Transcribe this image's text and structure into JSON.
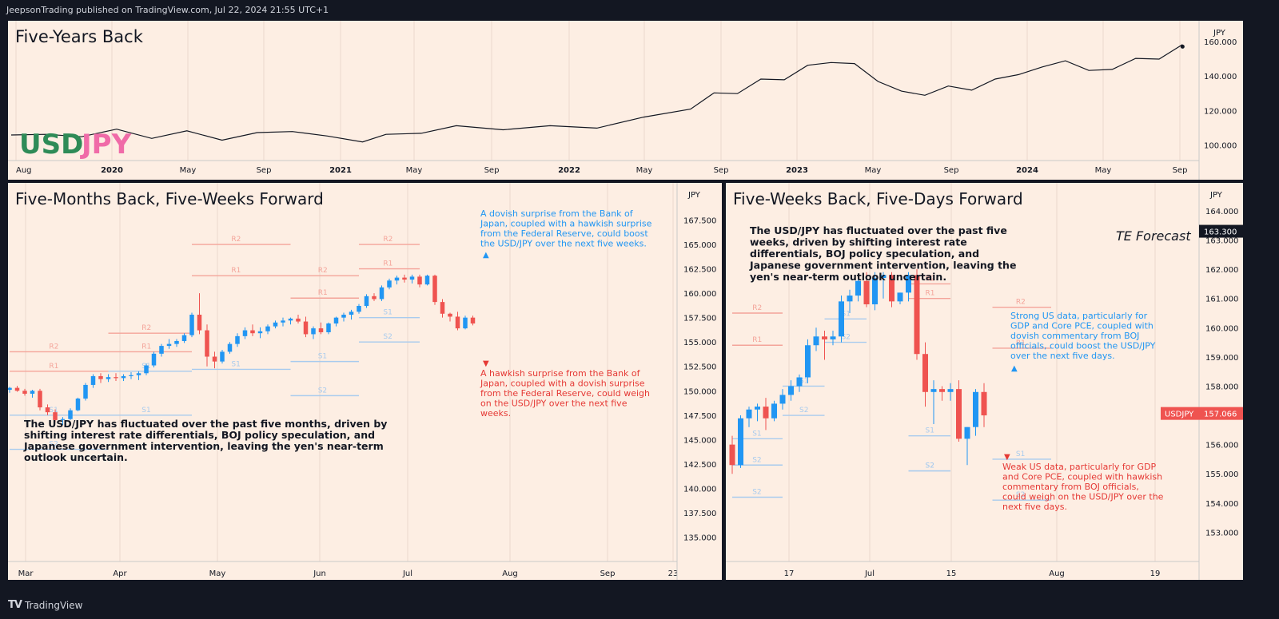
{
  "header": {
    "publisher": "JeepsonTrading published on TradingView.com, Jul 22, 2024 21:55 UTC+1"
  },
  "footer": {
    "brand": "TradingView"
  },
  "colors": {
    "bg": "#fdeee3",
    "up": "#2196f3",
    "down": "#ef5350",
    "res": "#f4a49a",
    "sup": "#a8cbee",
    "blueNote": "#2196f3",
    "redNote": "#e53935",
    "usd": "#2e8b57",
    "jpy": "#f06ba8"
  },
  "chart_data": [
    {
      "id": "five-years",
      "type": "line",
      "title": "Five-Years Back",
      "logo": {
        "usd": "USD",
        "jpy": "JPY"
      },
      "ylabel": "JPY",
      "ylim": [
        91,
        172
      ],
      "yticks": [
        "100.000",
        "120.000",
        "140.000",
        "160.000"
      ],
      "xticks": [
        "Aug",
        "2020",
        "May",
        "Sep",
        "2021",
        "May",
        "Sep",
        "2022",
        "May",
        "Sep",
        "2023",
        "May",
        "Sep",
        "2024",
        "May",
        "Sep"
      ],
      "series": [
        {
          "name": "USDJPY",
          "x": [
            0.0,
            0.15,
            0.3,
            0.45,
            0.6,
            0.75,
            0.9,
            1.05,
            1.2,
            1.35,
            1.5,
            1.6,
            1.75,
            1.9,
            2.1,
            2.3,
            2.5,
            2.7,
            2.9,
            3.0,
            3.1,
            3.2,
            3.3,
            3.4,
            3.5,
            3.6,
            3.7,
            3.8,
            3.9,
            4.0,
            4.1,
            4.2,
            4.3,
            4.4,
            4.5,
            4.6,
            4.7,
            4.8,
            4.9,
            5.0
          ],
          "values": [
            107,
            105,
            106,
            108,
            105,
            107,
            104,
            106,
            109,
            104,
            103,
            105,
            108,
            110,
            110,
            110,
            111,
            115,
            122,
            129,
            131,
            137,
            139,
            145,
            149,
            146,
            138,
            130,
            130,
            133,
            133,
            137,
            142,
            144,
            150,
            142,
            145,
            149,
            151,
            157
          ]
        }
      ],
      "end_value": 157
    },
    {
      "id": "five-months",
      "type": "candlestick",
      "title": "Five-Months Back, Five-Weeks Forward",
      "ylabel": "JPY",
      "ylim": [
        132.5,
        170.0
      ],
      "yticks": [
        "135.000",
        "137.500",
        "140.000",
        "142.500",
        "145.000",
        "147.500",
        "150.000",
        "152.500",
        "155.000",
        "157.500",
        "160.000",
        "162.500",
        "165.000",
        "167.500"
      ],
      "xticks": [
        "Mar",
        "Apr",
        "May",
        "Jun",
        "Jul",
        "Aug",
        "Sep",
        "23"
      ],
      "candles": [
        [
          150.1,
          150.4,
          149.8,
          150.3
        ],
        [
          150.3,
          150.5,
          149.9,
          150.0
        ],
        [
          150.0,
          150.2,
          149.5,
          149.7
        ],
        [
          149.7,
          150.1,
          149.3,
          150.0
        ],
        [
          150.0,
          150.2,
          148.0,
          148.3
        ],
        [
          148.3,
          148.6,
          147.5,
          147.8
        ],
        [
          147.8,
          148.1,
          146.8,
          147.0
        ],
        [
          147.0,
          147.3,
          146.5,
          147.1
        ],
        [
          147.1,
          148.2,
          147.0,
          148.0
        ],
        [
          148.0,
          149.3,
          147.9,
          149.2
        ],
        [
          149.2,
          150.8,
          149.0,
          150.6
        ],
        [
          150.6,
          151.7,
          150.3,
          151.5
        ],
        [
          151.5,
          151.8,
          150.8,
          151.2
        ],
        [
          151.2,
          151.7,
          150.9,
          151.4
        ],
        [
          151.4,
          151.8,
          151.0,
          151.3
        ],
        [
          151.3,
          151.7,
          151.0,
          151.5
        ],
        [
          151.5,
          151.9,
          151.2,
          151.6
        ],
        [
          151.6,
          152.0,
          151.1,
          151.8
        ],
        [
          151.8,
          152.8,
          151.6,
          152.6
        ],
        [
          152.6,
          154.0,
          152.4,
          153.8
        ],
        [
          153.8,
          154.8,
          153.5,
          154.6
        ],
        [
          154.6,
          155.3,
          154.3,
          154.8
        ],
        [
          154.8,
          155.3,
          154.5,
          155.1
        ],
        [
          155.1,
          155.9,
          154.9,
          155.7
        ],
        [
          155.7,
          158.0,
          155.5,
          157.8
        ],
        [
          157.8,
          160.0,
          155.8,
          156.2
        ],
        [
          156.2,
          156.8,
          152.5,
          153.5
        ],
        [
          153.5,
          154.0,
          152.3,
          153.0
        ],
        [
          153.0,
          154.2,
          152.8,
          154.0
        ],
        [
          154.0,
          155.0,
          153.8,
          154.8
        ],
        [
          154.8,
          155.9,
          154.5,
          155.6
        ],
        [
          155.6,
          156.5,
          155.3,
          156.2
        ],
        [
          156.2,
          156.8,
          155.6,
          155.9
        ],
        [
          155.9,
          156.5,
          155.4,
          156.1
        ],
        [
          156.1,
          156.8,
          155.8,
          156.6
        ],
        [
          156.6,
          157.2,
          156.4,
          157.0
        ],
        [
          157.0,
          157.5,
          156.6,
          157.2
        ],
        [
          157.2,
          157.5,
          156.8,
          157.4
        ],
        [
          157.4,
          157.8,
          156.9,
          157.1
        ],
        [
          157.1,
          157.6,
          155.5,
          155.8
        ],
        [
          155.8,
          156.6,
          155.3,
          156.4
        ],
        [
          156.4,
          157.0,
          155.8,
          156.0
        ],
        [
          156.0,
          157.0,
          155.8,
          156.9
        ],
        [
          156.9,
          157.6,
          156.6,
          157.5
        ],
        [
          157.5,
          158.0,
          157.1,
          157.8
        ],
        [
          157.8,
          158.3,
          157.3,
          158.1
        ],
        [
          158.1,
          158.9,
          157.9,
          158.7
        ],
        [
          158.7,
          159.9,
          158.5,
          159.7
        ],
        [
          159.7,
          160.0,
          159.2,
          159.4
        ],
        [
          159.4,
          160.8,
          159.2,
          160.6
        ],
        [
          160.6,
          161.5,
          160.4,
          161.3
        ],
        [
          161.3,
          161.8,
          160.9,
          161.6
        ],
        [
          161.6,
          161.9,
          161.1,
          161.4
        ],
        [
          161.4,
          161.9,
          161.0,
          161.7
        ],
        [
          161.7,
          161.9,
          160.6,
          160.9
        ],
        [
          160.9,
          161.9,
          160.8,
          161.8
        ],
        [
          161.8,
          161.9,
          158.8,
          159.1
        ],
        [
          159.1,
          159.4,
          157.5,
          157.9
        ],
        [
          157.9,
          158.0,
          157.1,
          157.6
        ],
        [
          157.6,
          158.1,
          156.2,
          156.4
        ],
        [
          156.4,
          157.7,
          156.3,
          157.5
        ],
        [
          157.5,
          157.7,
          156.7,
          156.9
        ]
      ],
      "levels": [
        {
          "label": "R2",
          "value": 165.0,
          "t0": 46,
          "t1": 54
        },
        {
          "label": "R1",
          "value": 162.5,
          "t0": 46,
          "t1": 54
        },
        {
          "label": "S1",
          "value": 157.5,
          "t0": 46,
          "t1": 54
        },
        {
          "label": "S2",
          "value": 155.0,
          "t0": 46,
          "t1": 54
        },
        {
          "label": "R2",
          "value": 165.0,
          "t0": 24,
          "t1": 37
        },
        {
          "label": "R2",
          "value": 161.8,
          "t0": 37,
          "t1": 46
        },
        {
          "label": "R1",
          "value": 161.8,
          "t0": 24,
          "t1": 37
        },
        {
          "label": "R1",
          "value": 159.5,
          "t0": 37,
          "t1": 46
        },
        {
          "label": "S1",
          "value": 152.2,
          "t0": 24,
          "t1": 37
        },
        {
          "label": "S1",
          "value": 153.0,
          "t0": 37,
          "t1": 46
        },
        {
          "label": "S2",
          "value": 149.5,
          "t0": 37,
          "t1": 46
        },
        {
          "label": "R2",
          "value": 155.9,
          "t0": 13,
          "t1": 24
        },
        {
          "label": "R1",
          "value": 154.0,
          "t0": 13,
          "t1": 24
        },
        {
          "label": "S1",
          "value": 152.0,
          "t0": 13,
          "t1": 24
        },
        {
          "label": "S1",
          "value": 147.5,
          "t0": 13,
          "t1": 24
        },
        {
          "label": "R2",
          "value": 154.0,
          "t0": 0,
          "t1": 13
        },
        {
          "label": "R1",
          "value": 152.0,
          "t0": 0,
          "t1": 13
        },
        {
          "label": "S1",
          "value": 147.5,
          "t0": 0,
          "t1": 13
        },
        {
          "label": "S2",
          "value": 144.0,
          "t0": 0,
          "t1": 13
        }
      ],
      "annotations": [
        {
          "text": "A dovish surprise from the Bank of Japan, coupled with a hawkish surprise from the Federal Reserve, could boost the USD/JPY over the next five weeks.",
          "color": "blue",
          "marker": "▲"
        },
        {
          "text": "A hawkish surprise from the Bank of Japan, coupled with a dovish surprise from the Federal Reserve, could weigh on the USD/JPY over the next five weeks.",
          "color": "red",
          "marker": "▼"
        }
      ],
      "note": "The USD/JPY has fluctuated over the past five months, driven by shifting interest rate differentials, BOJ policy speculation, and Japanese government intervention, leaving the yen's near-term outlook uncertain."
    },
    {
      "id": "five-weeks",
      "type": "candlestick",
      "title": "Five-Weeks Back, Five-Days Forward",
      "ylabel": "JPY",
      "ylim": [
        152.0,
        164.9
      ],
      "yticks": [
        "153.000",
        "154.000",
        "155.000",
        "156.000",
        "157.000",
        "158.000",
        "159.000",
        "160.000",
        "161.000",
        "162.000",
        "163.000",
        "164.000"
      ],
      "xticks": [
        "17",
        "Jul",
        "15",
        "Aug",
        "19"
      ],
      "candles": [
        [
          156.0,
          156.3,
          155.0,
          155.3
        ],
        [
          155.3,
          157.0,
          155.2,
          156.9
        ],
        [
          156.9,
          157.3,
          156.6,
          157.2
        ],
        [
          157.2,
          157.4,
          156.8,
          157.3
        ],
        [
          157.3,
          157.6,
          156.5,
          156.9
        ],
        [
          156.9,
          157.5,
          156.8,
          157.4
        ],
        [
          157.4,
          157.9,
          157.2,
          157.7
        ],
        [
          157.7,
          158.2,
          157.5,
          158.0
        ],
        [
          158.0,
          158.4,
          157.8,
          158.3
        ],
        [
          158.3,
          159.6,
          158.1,
          159.4
        ],
        [
          159.4,
          160.0,
          159.2,
          159.7
        ],
        [
          159.7,
          159.9,
          158.9,
          159.6
        ],
        [
          159.6,
          159.9,
          159.4,
          159.7
        ],
        [
          159.7,
          161.1,
          159.5,
          160.9
        ],
        [
          160.9,
          161.3,
          160.5,
          161.1
        ],
        [
          161.1,
          161.8,
          160.9,
          161.6
        ],
        [
          161.6,
          161.9,
          160.7,
          160.8
        ],
        [
          160.8,
          161.9,
          160.6,
          161.7
        ],
        [
          161.7,
          161.9,
          161.0,
          161.8
        ],
        [
          161.8,
          161.9,
          160.7,
          160.9
        ],
        [
          160.9,
          161.2,
          160.8,
          161.2
        ],
        [
          161.2,
          161.9,
          160.9,
          161.8
        ],
        [
          161.8,
          162.0,
          158.9,
          159.1
        ],
        [
          159.1,
          159.5,
          157.3,
          157.8
        ],
        [
          157.8,
          158.2,
          156.7,
          157.9
        ],
        [
          157.9,
          158.0,
          157.5,
          157.8
        ],
        [
          157.8,
          158.1,
          157.5,
          157.9
        ],
        [
          157.9,
          158.2,
          156.1,
          156.2
        ],
        [
          156.2,
          156.6,
          155.3,
          156.6
        ],
        [
          156.6,
          157.9,
          156.3,
          157.8
        ],
        [
          157.8,
          158.1,
          156.6,
          157.0
        ]
      ],
      "levels": [
        {
          "label": "R2",
          "value": 160.7,
          "t0": 31,
          "t1": 38
        },
        {
          "label": "R1",
          "value": 159.3,
          "t0": 31,
          "t1": 38
        },
        {
          "label": "S1",
          "value": 155.5,
          "t0": 31,
          "t1": 38
        },
        {
          "label": "S2",
          "value": 154.1,
          "t0": 31,
          "t1": 38
        },
        {
          "label": "R2",
          "value": 161.5,
          "t0": 21,
          "t1": 26
        },
        {
          "label": "R1",
          "value": 161.0,
          "t0": 21,
          "t1": 26
        },
        {
          "label": "S1",
          "value": 156.3,
          "t0": 21,
          "t1": 26
        },
        {
          "label": "S2",
          "value": 155.1,
          "t0": 21,
          "t1": 26
        },
        {
          "label": "S1",
          "value": 160.3,
          "t0": 11,
          "t1": 16
        },
        {
          "label": "S2",
          "value": 159.5,
          "t0": 11,
          "t1": 16
        },
        {
          "label": "R2",
          "value": 160.5,
          "t0": 0,
          "t1": 6
        },
        {
          "label": "R1",
          "value": 159.4,
          "t0": 0,
          "t1": 6
        },
        {
          "label": "S1",
          "value": 156.2,
          "t0": 0,
          "t1": 6
        },
        {
          "label": "S2",
          "value": 155.3,
          "t0": 0,
          "t1": 6
        },
        {
          "label": "S1",
          "value": 158.0,
          "t0": 6,
          "t1": 11
        },
        {
          "label": "S2",
          "value": 157.0,
          "t0": 6,
          "t1": 11
        },
        {
          "label": "S2",
          "value": 155.1,
          "t0": 21,
          "t1": 26
        },
        {
          "label": "S2",
          "value": 154.2,
          "t0": 0,
          "t1": 6
        }
      ],
      "annotations": [
        {
          "text": "Strong US data, particularly for GDP and Core PCE, coupled with dovish commentary from BOJ officials, could boost the USD/JPY over the next five days.",
          "color": "blue",
          "marker": "▲"
        },
        {
          "text": "Weak US data, particularly for GDP and Core PCE, coupled with hawkish commentary from BOJ officials, could weigh on the USD/JPY over the next five days.",
          "color": "red",
          "marker": "▼"
        }
      ],
      "forecast": {
        "label": "TE Forecast",
        "value": "163.300"
      },
      "last": {
        "label": "USDJPY",
        "value": "157.066"
      },
      "note": "The USD/JPY has fluctuated over the past five weeks, driven by shifting interest rate differentials, BOJ policy speculation, and Japanese government intervention, leaving the yen's near-term outlook uncertain."
    }
  ]
}
